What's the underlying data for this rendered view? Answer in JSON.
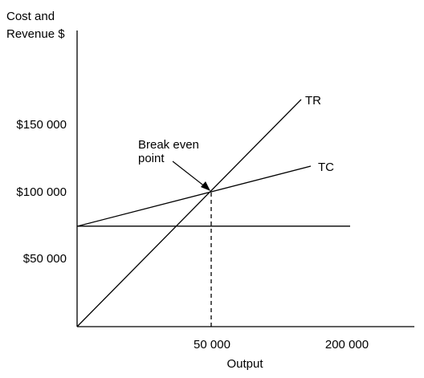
{
  "chart_data": {
    "type": "line",
    "ylabel_lines": [
      "Cost and",
      "Revenue $"
    ],
    "xlabel": "Output",
    "x_ticks": [
      {
        "value": 50000,
        "label": "50 000"
      },
      {
        "value": 200000,
        "label": "200 000"
      }
    ],
    "y_ticks": [
      {
        "value": 50000,
        "label": "$50 000"
      },
      {
        "value": 100000,
        "label": "$100 000"
      },
      {
        "value": 150000,
        "label": "$150 000"
      }
    ],
    "series": [
      {
        "name": "TR",
        "x": [
          0,
          85000
        ],
        "y": [
          0,
          170000
        ]
      },
      {
        "name": "TC",
        "x": [
          0,
          85000
        ],
        "y": [
          75000,
          120000
        ]
      },
      {
        "name": "",
        "x": [
          0,
          102000
        ],
        "y": [
          75000,
          75000
        ]
      }
    ],
    "break_even": {
      "x": 50000,
      "y": 100000,
      "label_lines": [
        "Break even",
        "point"
      ]
    },
    "colors": {
      "line": "#000000",
      "background": "#ffffff"
    }
  }
}
